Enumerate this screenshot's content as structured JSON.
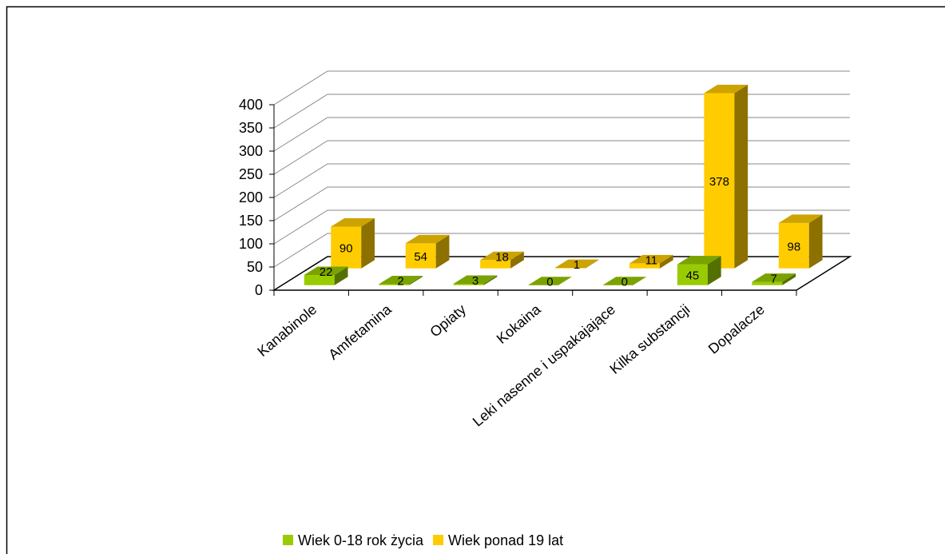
{
  "chart_data": {
    "type": "bar3d",
    "categories": [
      "Kanabinole",
      "Amfetamina",
      "Opiaty",
      "Kokaina",
      "Leki nasenne i uspakajające",
      "Kilka substancji",
      "Dopalacze"
    ],
    "series": [
      {
        "name": "Wiek 0-18 rok życia",
        "color": "#99cc00",
        "values": [
          22,
          2,
          3,
          0,
          0,
          45,
          7
        ]
      },
      {
        "name": "Wiek ponad 19 lat",
        "color": "#ffcc00",
        "values": [
          90,
          54,
          18,
          1,
          11,
          378,
          98
        ]
      }
    ],
    "ylim": [
      0,
      400
    ],
    "yticks": [
      0,
      50,
      100,
      150,
      200,
      250,
      300,
      350,
      400
    ],
    "grid": true,
    "legend": "bottom"
  }
}
